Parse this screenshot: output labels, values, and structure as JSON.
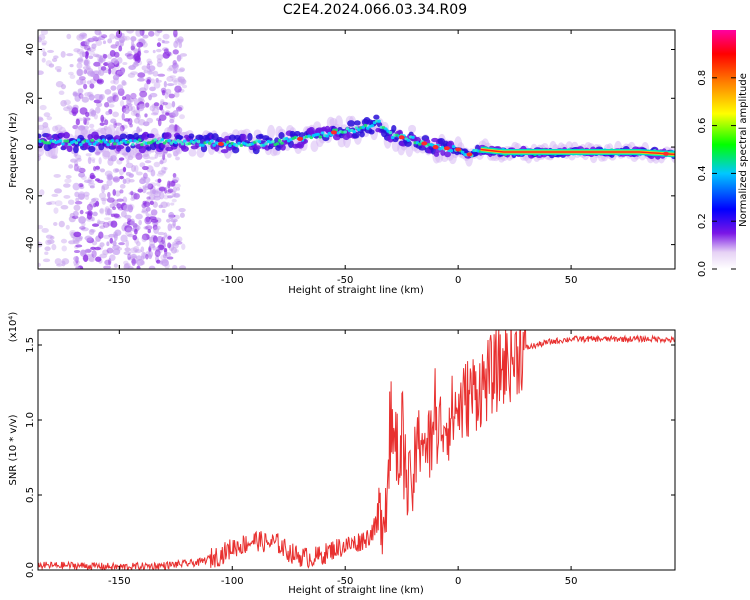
{
  "title": "C2E4.2024.066.03.34.R09",
  "chart_data": [
    {
      "type": "heatmap",
      "name": "spectrogram",
      "xlabel": "Height of straight line (km)",
      "ylabel": "Frequency (Hz)",
      "xlim": [
        -186,
        96
      ],
      "ylim": [
        -50,
        48
      ],
      "x_ticks": [
        -150,
        -100,
        -50,
        0,
        50
      ],
      "y_ticks": [
        -40,
        -20,
        0,
        20,
        40
      ],
      "colorbar": {
        "label": "Normalized spectral amplitude",
        "range": [
          0,
          1
        ],
        "ticks": [
          0.0,
          0.2,
          0.4,
          0.6,
          0.8
        ],
        "tick_labels": [
          "0.0",
          "0.2",
          "0.4",
          "0.6",
          "0.8"
        ]
      },
      "ridge": {
        "x": [
          -186,
          -150,
          -120,
          -100,
          -80,
          -65,
          -55,
          -45,
          -35,
          -30,
          -20,
          -10,
          0,
          5,
          10,
          20,
          40,
          60,
          80,
          96
        ],
        "freq_hz": [
          2,
          2,
          2,
          1,
          2,
          4,
          6,
          7,
          10,
          5,
          3,
          0,
          -1,
          -3,
          -1,
          -2,
          -2,
          -2,
          -2,
          -3
        ]
      },
      "noise_region_x": [
        -170,
        -123
      ]
    },
    {
      "type": "line",
      "name": "snr",
      "xlabel": "Height of straight line (km)",
      "ylabel": "SNR (10 * v/v)",
      "y_multiplier": "(x10⁴)",
      "xlim": [
        -186,
        96
      ],
      "ylim": [
        0,
        1.6
      ],
      "x_ticks": [
        -150,
        -100,
        -50,
        0,
        50
      ],
      "y_ticks": [
        0.0,
        0.5,
        1.0,
        1.5
      ],
      "y_tick_labels": [
        "0.0",
        "0.5",
        "1.0",
        "1.5"
      ],
      "series": [
        {
          "name": "SNR",
          "color": "#e8302f",
          "x": [
            -186,
            -170,
            -150,
            -130,
            -115,
            -105,
            -100,
            -95,
            -90,
            -85,
            -80,
            -75,
            -70,
            -65,
            -60,
            -55,
            -50,
            -45,
            -40,
            -36,
            -33,
            -31,
            -30,
            -28,
            -26,
            -24,
            -22,
            -20,
            -18,
            -16,
            -14,
            -12,
            -10,
            -8,
            -6,
            -4,
            -2,
            0,
            2,
            4,
            6,
            8,
            10,
            12,
            15,
            20,
            25,
            30,
            40,
            50,
            60,
            70,
            80,
            90,
            96
          ],
          "y": [
            0.03,
            0.03,
            0.02,
            0.03,
            0.05,
            0.1,
            0.15,
            0.17,
            0.2,
            0.18,
            0.18,
            0.12,
            0.09,
            0.08,
            0.1,
            0.14,
            0.16,
            0.18,
            0.22,
            0.3,
            0.4,
            0.6,
            0.8,
            0.85,
            0.7,
            0.75,
            0.5,
            0.6,
            0.8,
            0.95,
            0.8,
            0.85,
            0.9,
            0.95,
            1.0,
            1.0,
            1.05,
            1.08,
            1.1,
            1.15,
            1.18,
            1.2,
            1.22,
            1.25,
            1.3,
            1.36,
            1.42,
            1.48,
            1.52,
            1.54,
            1.54,
            1.54,
            1.54,
            1.54,
            1.53
          ]
        }
      ]
    }
  ]
}
